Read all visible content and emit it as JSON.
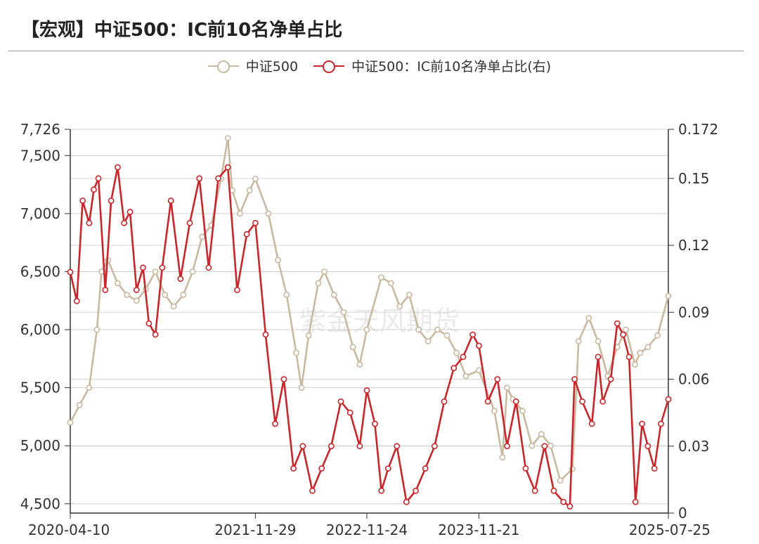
{
  "title": "【宏观】中证500：IC前10名净单占比",
  "watermark": "紫金天风期货",
  "colors": {
    "csi500": "#c9b9a1",
    "ratio": "#c8262b"
  },
  "chart_data": {
    "type": "line",
    "xlabel": "",
    "ylabel": "",
    "x_range": [
      "2020-04-10",
      "2025-07-25"
    ],
    "x_ticks": [
      "2020-04-10",
      "2021-11-29",
      "2022-11-24",
      "2023-11-21",
      "2025-07-25"
    ],
    "y_left": {
      "min": 4420,
      "max": 7726,
      "ticks": [
        4500,
        5000,
        5500,
        6000,
        6500,
        7000,
        7500,
        7726
      ],
      "tick_labels": [
        "4,500",
        "5,000",
        "5,500",
        "6,000",
        "6,500",
        "7,000",
        "7,500",
        "7,726"
      ]
    },
    "y_right": {
      "min": 0,
      "max": 0.172,
      "ticks": [
        0,
        0.03,
        0.06,
        0.09,
        0.12,
        0.15,
        0.172
      ],
      "tick_labels": [
        "0",
        "0.03",
        "0.06",
        "0.09",
        "0.12",
        "0.15",
        "0.172"
      ]
    },
    "series": [
      {
        "name": "中证500",
        "axis": "left",
        "x": [
          "2020-04-10",
          "2020-05-10",
          "2020-06-10",
          "2020-07-05",
          "2020-07-20",
          "2020-08-10",
          "2020-09-10",
          "2020-10-10",
          "2020-11-10",
          "2020-12-10",
          "2021-01-10",
          "2021-02-10",
          "2021-03-10",
          "2021-04-10",
          "2021-05-10",
          "2021-06-10",
          "2021-07-10",
          "2021-08-10",
          "2021-09-01",
          "2021-09-15",
          "2021-10-10",
          "2021-11-10",
          "2021-11-29",
          "2022-01-10",
          "2022-02-10",
          "2022-03-10",
          "2022-04-10",
          "2022-04-27",
          "2022-05-20",
          "2022-06-20",
          "2022-07-10",
          "2022-08-10",
          "2022-09-10",
          "2022-10-10",
          "2022-11-01",
          "2022-11-24",
          "2023-01-10",
          "2023-02-10",
          "2023-03-10",
          "2023-04-10",
          "2023-05-10",
          "2023-06-10",
          "2023-07-10",
          "2023-08-10",
          "2023-09-10",
          "2023-10-10",
          "2023-11-21",
          "2024-01-10",
          "2024-02-05",
          "2024-02-20",
          "2024-03-10",
          "2024-04-10",
          "2024-05-10",
          "2024-06-10",
          "2024-07-10",
          "2024-08-10",
          "2024-09-18",
          "2024-10-08",
          "2024-11-10",
          "2024-12-10",
          "2025-01-10",
          "2025-02-10",
          "2025-03-10",
          "2025-04-08",
          "2025-04-25",
          "2025-05-20",
          "2025-06-20",
          "2025-07-25"
        ],
        "values": [
          5200,
          5350,
          5500,
          6000,
          6500,
          6600,
          6400,
          6300,
          6250,
          6350,
          6500,
          6300,
          6200,
          6300,
          6500,
          6800,
          6900,
          7300,
          7650,
          7200,
          7000,
          7200,
          7300,
          7000,
          6600,
          6300,
          5800,
          5500,
          5950,
          6400,
          6500,
          6300,
          6150,
          5850,
          5700,
          6000,
          6450,
          6400,
          6200,
          6300,
          6000,
          5900,
          6000,
          5950,
          5800,
          5600,
          5650,
          5300,
          4900,
          5500,
          5400,
          5300,
          5000,
          5100,
          5000,
          4700,
          4800,
          5900,
          6100,
          5900,
          5600,
          5850,
          6000,
          5700,
          5800,
          5850,
          5950,
          6290
        ]
      },
      {
        "name": "中证500：IC前10名净单占比(右)",
        "axis": "right",
        "x": [
          "2020-04-10",
          "2020-05-01",
          "2020-05-20",
          "2020-06-10",
          "2020-06-25",
          "2020-07-10",
          "2020-08-01",
          "2020-08-20",
          "2020-09-10",
          "2020-10-01",
          "2020-10-20",
          "2020-11-10",
          "2020-12-01",
          "2020-12-20",
          "2021-01-10",
          "2021-02-01",
          "2021-03-01",
          "2021-04-01",
          "2021-05-01",
          "2021-06-01",
          "2021-07-01",
          "2021-08-01",
          "2021-09-01",
          "2021-10-01",
          "2021-11-01",
          "2021-11-29",
          "2022-01-01",
          "2022-02-01",
          "2022-03-01",
          "2022-04-01",
          "2022-05-01",
          "2022-06-01",
          "2022-07-01",
          "2022-08-01",
          "2022-09-01",
          "2022-10-01",
          "2022-11-01",
          "2022-11-24",
          "2022-12-20",
          "2023-01-10",
          "2023-02-01",
          "2023-03-01",
          "2023-04-01",
          "2023-05-01",
          "2023-06-01",
          "2023-07-01",
          "2023-08-01",
          "2023-09-01",
          "2023-10-01",
          "2023-11-01",
          "2023-11-21",
          "2023-12-20",
          "2024-01-20",
          "2024-02-20",
          "2024-03-20",
          "2024-04-20",
          "2024-05-20",
          "2024-06-20",
          "2024-07-20",
          "2024-08-20",
          "2024-09-10",
          "2024-09-25",
          "2024-10-20",
          "2024-11-20",
          "2024-12-10",
          "2024-12-25",
          "2025-01-20",
          "2025-02-10",
          "2025-03-01",
          "2025-03-20",
          "2025-04-10",
          "2025-05-01",
          "2025-05-20",
          "2025-06-10",
          "2025-07-01",
          "2025-07-25"
        ],
        "values": [
          0.108,
          0.095,
          0.14,
          0.13,
          0.145,
          0.15,
          0.1,
          0.14,
          0.155,
          0.13,
          0.135,
          0.1,
          0.11,
          0.085,
          0.08,
          0.11,
          0.14,
          0.105,
          0.13,
          0.15,
          0.11,
          0.15,
          0.155,
          0.1,
          0.125,
          0.13,
          0.08,
          0.04,
          0.06,
          0.02,
          0.03,
          0.01,
          0.02,
          0.03,
          0.05,
          0.045,
          0.03,
          0.055,
          0.04,
          0.01,
          0.02,
          0.03,
          0.005,
          0.01,
          0.02,
          0.03,
          0.05,
          0.065,
          0.07,
          0.08,
          0.075,
          0.05,
          0.06,
          0.03,
          0.05,
          0.02,
          0.01,
          0.03,
          0.01,
          0.005,
          0.003,
          0.06,
          0.05,
          0.04,
          0.07,
          0.05,
          0.06,
          0.085,
          0.08,
          0.07,
          0.005,
          0.04,
          0.03,
          0.02,
          0.04,
          0.051
        ]
      }
    ]
  }
}
